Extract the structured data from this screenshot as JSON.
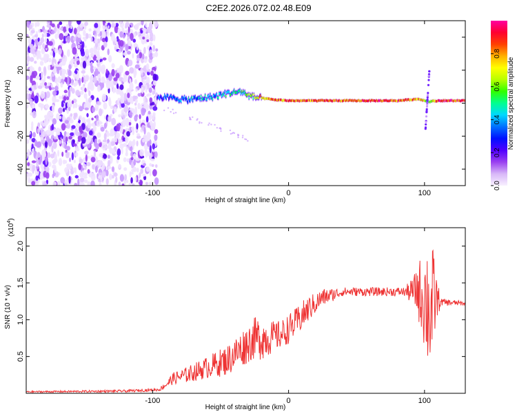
{
  "title": "C2E2.2026.072.02.48.E09",
  "chart_data": [
    {
      "type": "heatmap",
      "name": "spectrogram",
      "xlabel": "Height of straight line (km)",
      "ylabel": "Frequency (Hz)",
      "xlim": [
        -193,
        130
      ],
      "ylim": [
        -50,
        50
      ],
      "xticks": [
        -100,
        0,
        100
      ],
      "yticks": [
        -40,
        -20,
        0,
        20,
        40
      ],
      "colorbar": {
        "label": "Normalized spectral amplitude",
        "range": [
          0,
          1
        ],
        "ticks": [
          "0.0",
          "0.2",
          "0.4",
          "0.6",
          "0.8"
        ],
        "colors": [
          "#f8f0ff",
          "#d8b8f8",
          "#9a40f0",
          "#5000ff",
          "#0010ff",
          "#0070ff",
          "#00d8ff",
          "#00ff90",
          "#30ff00",
          "#b8ff00",
          "#ffff00",
          "#ffb000",
          "#ff4000",
          "#ff0030",
          "#ff00a0"
        ]
      },
      "noise_region_x": [
        -193,
        -97
      ],
      "signal_track": {
        "x": [
          -97,
          -85,
          -75,
          -65,
          -55,
          -45,
          -35,
          -28,
          -20,
          -10,
          0,
          10,
          25,
          40,
          60,
          80,
          95,
          103,
          110,
          130
        ],
        "freq": [
          4,
          3,
          2,
          3,
          4,
          6,
          7,
          4,
          3,
          2,
          1.5,
          1.5,
          1.5,
          1.5,
          1.5,
          1.5,
          2.5,
          1,
          1.5,
          1.5
        ],
        "amplitude": [
          0.3,
          0.35,
          0.35,
          0.4,
          0.4,
          0.45,
          0.5,
          0.6,
          0.75,
          0.8,
          0.85,
          0.85,
          0.85,
          0.85,
          0.85,
          0.85,
          0.8,
          0.6,
          0.9,
          0.9
        ]
      }
    },
    {
      "type": "line",
      "name": "snr",
      "xlabel": "Height of straight line (km)",
      "ylabel": "SNR (10 * v/v)",
      "scale_label": "(x10",
      "scale_exp": "4",
      "xlim": [
        -193,
        130
      ],
      "ylim": [
        0,
        2.25
      ],
      "xticks": [
        -100,
        0,
        100
      ],
      "yticks": [
        "0.5",
        "1.0",
        "1.5",
        "2.0"
      ],
      "color": "#ee3333",
      "envelope": {
        "x": [
          -193,
          -120,
          -95,
          -90,
          -85,
          -75,
          -60,
          -45,
          -35,
          -25,
          -15,
          -5,
          5,
          15,
          25,
          40,
          60,
          80,
          90,
          95,
          100,
          105,
          108,
          112,
          130
        ],
        "y": [
          0.02,
          0.03,
          0.05,
          0.12,
          0.2,
          0.25,
          0.35,
          0.45,
          0.6,
          0.75,
          0.75,
          0.8,
          0.95,
          1.15,
          1.3,
          1.38,
          1.38,
          1.38,
          1.38,
          1.4,
          1.3,
          1.1,
          1.3,
          1.24,
          1.22
        ]
      },
      "noise_amp": {
        "x": [
          -193,
          -95,
          -85,
          -60,
          -35,
          -20,
          -10,
          10,
          25,
          40,
          85,
          92,
          98,
          102,
          106,
          109,
          112,
          130
        ],
        "y": [
          0.01,
          0.02,
          0.08,
          0.15,
          0.25,
          0.3,
          0.2,
          0.2,
          0.12,
          0.06,
          0.06,
          0.2,
          0.55,
          0.9,
          0.85,
          0.3,
          0.05,
          0.03
        ]
      }
    }
  ]
}
